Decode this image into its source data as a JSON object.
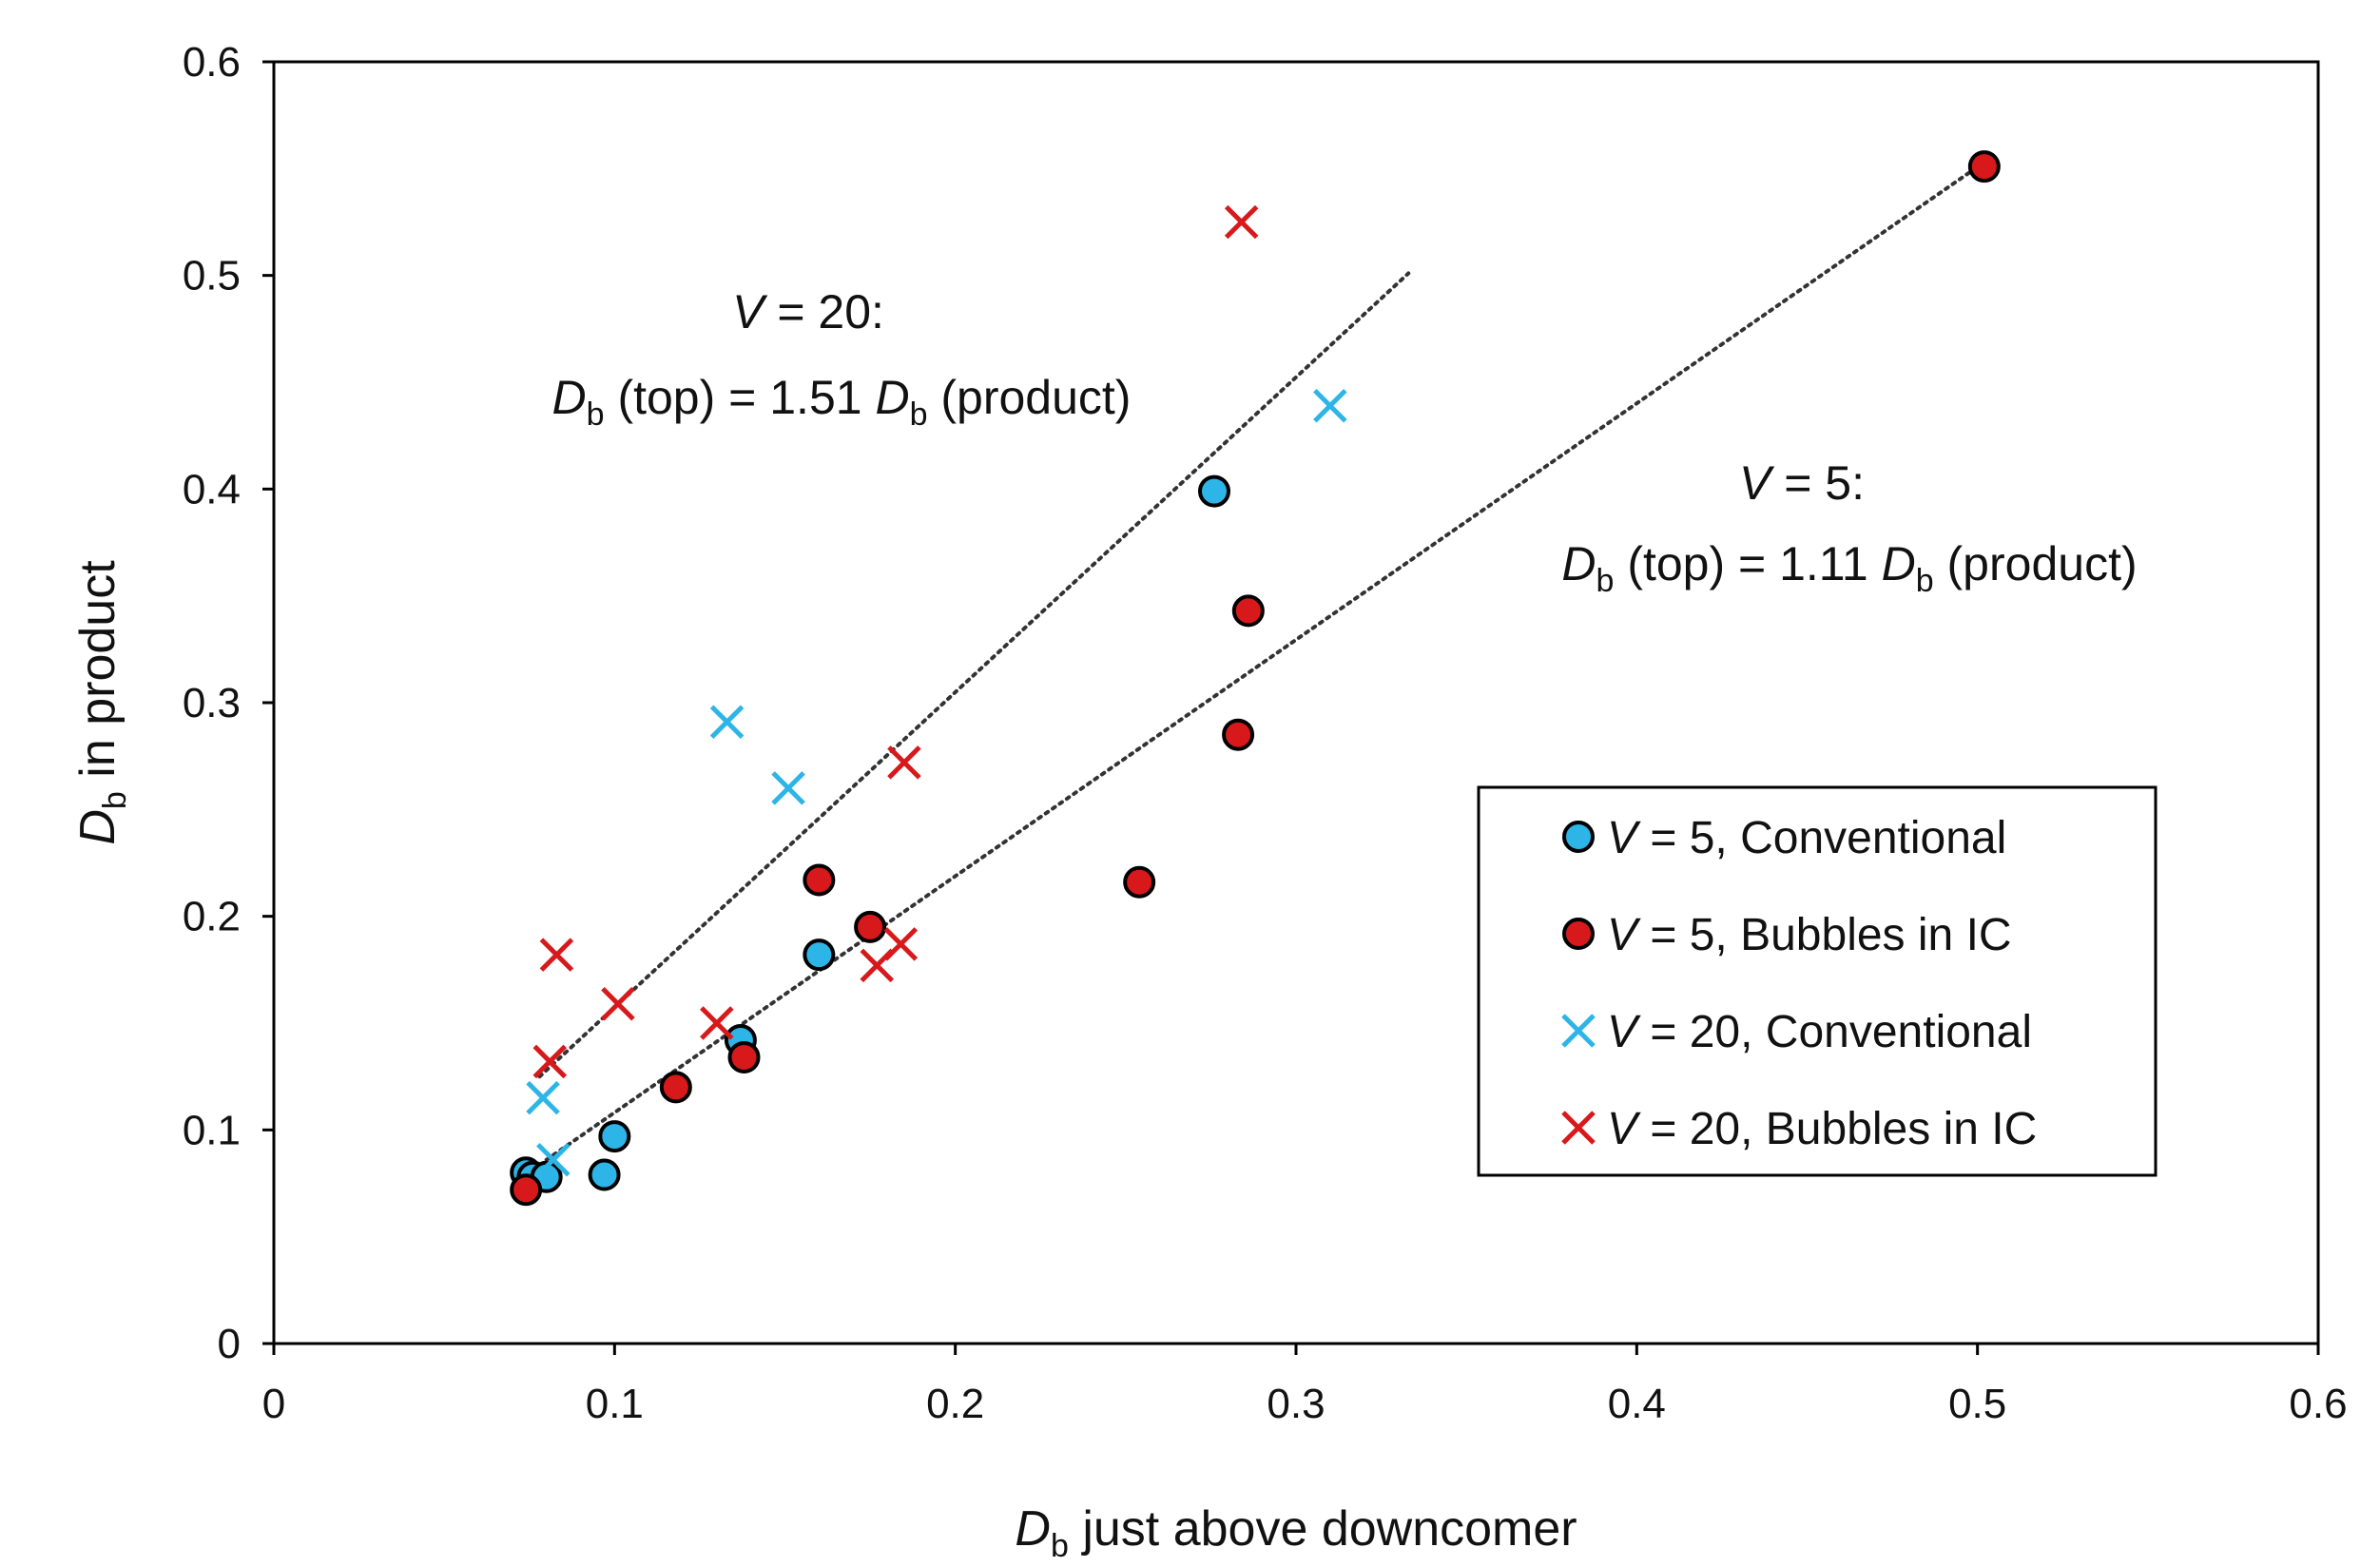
{
  "chart_data": {
    "type": "scatter",
    "xlabel": {
      "main": "D",
      "sub": "b",
      "rest": " just above downcomer"
    },
    "ylabel": {
      "main": "D",
      "sub": "b",
      "rest": " in product"
    },
    "xlim": [
      0,
      0.6
    ],
    "ylim": [
      0,
      0.6
    ],
    "xticks": [
      0,
      0.1,
      0.2,
      0.3,
      0.4,
      0.5,
      0.6
    ],
    "yticks": [
      0,
      0.1,
      0.2,
      0.3,
      0.4,
      0.5,
      0.6
    ],
    "xtick_labels": [
      "0",
      "0.1",
      "0.2",
      "0.3",
      "0.4",
      "0.5",
      "0.6"
    ],
    "ytick_labels": [
      "0",
      "0.1",
      "0.2",
      "0.3",
      "0.4",
      "0.5",
      "0.6"
    ],
    "grid": false,
    "legend_position": "center-right",
    "colors": {
      "blue": "#2db5e8",
      "red": "#d8191c",
      "edge": "#000000",
      "trend": "#333333"
    },
    "series": [
      {
        "name": "V = 5, Conventional",
        "legend_v": "V",
        "legend_rest": " = 5, Conventional",
        "marker": "circle",
        "color": "#2db5e8",
        "points": [
          [
            0.074,
            0.08
          ],
          [
            0.076,
            0.078
          ],
          [
            0.08,
            0.078
          ],
          [
            0.097,
            0.079
          ],
          [
            0.1,
            0.097
          ],
          [
            0.137,
            0.142
          ],
          [
            0.16,
            0.182
          ],
          [
            0.276,
            0.399
          ]
        ]
      },
      {
        "name": "V = 5, Bubbles in IC",
        "legend_v": "V",
        "legend_rest": " = 5, Bubbles in IC",
        "marker": "circle",
        "color": "#d8191c",
        "points": [
          [
            0.074,
            0.072
          ],
          [
            0.118,
            0.12
          ],
          [
            0.138,
            0.134
          ],
          [
            0.16,
            0.217
          ],
          [
            0.175,
            0.195
          ],
          [
            0.254,
            0.216
          ],
          [
            0.283,
            0.285
          ],
          [
            0.286,
            0.343
          ],
          [
            0.502,
            0.551
          ]
        ]
      },
      {
        "name": "V = 20, Conventional",
        "legend_v": "V",
        "legend_rest": " = 20, Conventional",
        "marker": "x",
        "color": "#2db5e8",
        "points": [
          [
            0.079,
            0.115
          ],
          [
            0.082,
            0.086
          ],
          [
            0.133,
            0.291
          ],
          [
            0.151,
            0.26
          ],
          [
            0.31,
            0.439
          ]
        ]
      },
      {
        "name": "V = 20, Bubbles in IC",
        "legend_v": "V",
        "legend_rest": " = 20, Bubbles in IC",
        "marker": "x",
        "color": "#d8191c",
        "points": [
          [
            0.081,
            0.132
          ],
          [
            0.083,
            0.182
          ],
          [
            0.101,
            0.159
          ],
          [
            0.13,
            0.15
          ],
          [
            0.177,
            0.177
          ],
          [
            0.184,
            0.187
          ],
          [
            0.185,
            0.272
          ],
          [
            0.284,
            0.525
          ]
        ]
      }
    ],
    "trendlines": [
      {
        "name": "V = 20 fit",
        "style": "dotted",
        "from": [
          0.078,
          0.125
        ],
        "to": [
          0.333,
          0.501
        ]
      },
      {
        "name": "V = 5 fit",
        "style": "dotted",
        "from": [
          0.08,
          0.086
        ],
        "to": [
          0.502,
          0.553
        ]
      }
    ],
    "annotations": {
      "v20": {
        "line1_v": "V",
        "line1_rest": " = 20:",
        "d": "D",
        "sub": "b",
        "mid": " (top) = 1.51 ",
        "d2": "D",
        "sub2": "b",
        "end": " (product)"
      },
      "v5": {
        "line1_v": "V",
        "line1_rest": " = 5:",
        "d": "D",
        "sub": "b",
        "mid": " (top) = 1.11 ",
        "d2": "D",
        "sub2": "b",
        "end": " (product)"
      }
    }
  }
}
